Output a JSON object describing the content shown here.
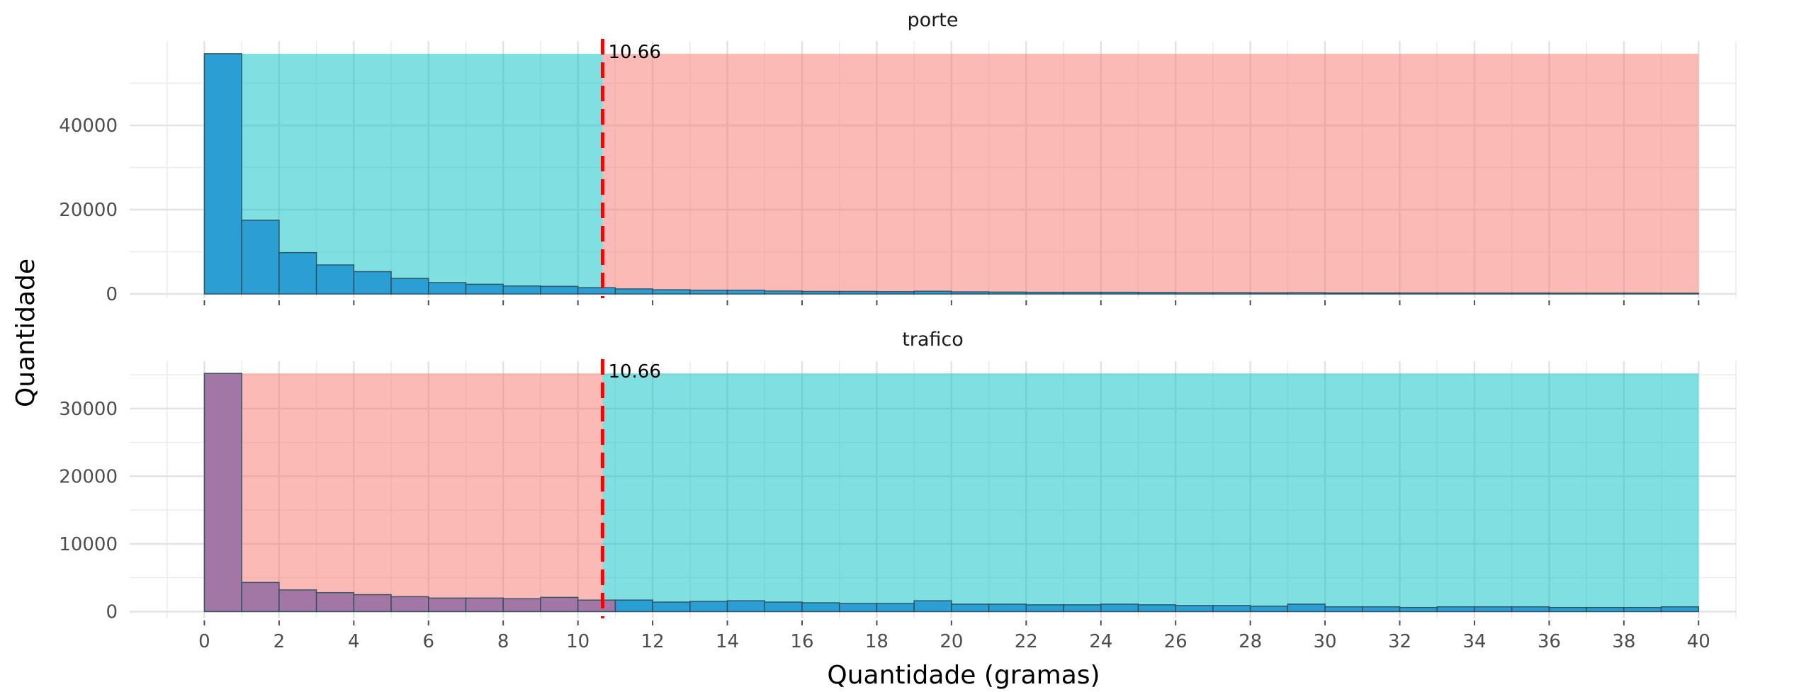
{
  "chart_data": {
    "type": "bar",
    "xlabel": "Quantidade (gramas)",
    "ylabel": "Quantidade",
    "xlim": [
      -2,
      41
    ],
    "x_ticks": [
      0,
      2,
      4,
      6,
      8,
      10,
      12,
      14,
      16,
      18,
      20,
      22,
      24,
      26,
      28,
      30,
      32,
      34,
      36,
      38,
      40
    ],
    "bin_width": 1,
    "cutoff": 10.66,
    "cutoff_label": "10.66",
    "cutoff_color": "#ff0000",
    "colors": {
      "porte_bar": "#2b9fd3",
      "trafico_bar_left": "#a277a6",
      "trafico_bar_right": "#2b9fd3",
      "shade_teal": "#00bfc4",
      "shade_red": "#f8766d"
    },
    "panels": [
      {
        "name": "porte",
        "ylim": [
          -1000,
          60000
        ],
        "y_ticks": [
          0,
          20000,
          40000
        ],
        "y_tick_labels": [
          "0",
          "20000",
          "40000"
        ],
        "shade_top": 57000,
        "shade_left_color": "teal",
        "shade_right_color": "red",
        "bins_start": [
          0,
          1,
          2,
          3,
          4,
          5,
          6,
          7,
          8,
          9,
          10,
          11,
          12,
          13,
          14,
          15,
          16,
          17,
          18,
          19,
          20,
          21,
          22,
          23,
          24,
          25,
          26,
          27,
          28,
          29,
          30,
          31,
          32,
          33,
          34,
          35,
          36,
          37,
          38,
          39
        ],
        "counts": [
          57000,
          17500,
          9800,
          6900,
          5300,
          3700,
          2700,
          2300,
          1900,
          1800,
          1500,
          1200,
          1000,
          900,
          900,
          700,
          600,
          600,
          550,
          650,
          500,
          450,
          400,
          400,
          400,
          350,
          300,
          300,
          280,
          300,
          250,
          250,
          230,
          230,
          220,
          220,
          200,
          200,
          200,
          180
        ]
      },
      {
        "name": "trafico",
        "ylim": [
          -1000,
          37000
        ],
        "y_ticks": [
          0,
          10000,
          20000,
          30000
        ],
        "y_tick_labels": [
          "0",
          "10000",
          "20000",
          "30000"
        ],
        "shade_top": 35200,
        "shade_left_color": "red",
        "shade_right_color": "teal",
        "bins_start": [
          0,
          1,
          2,
          3,
          4,
          5,
          6,
          7,
          8,
          9,
          10,
          11,
          12,
          13,
          14,
          15,
          16,
          17,
          18,
          19,
          20,
          21,
          22,
          23,
          24,
          25,
          26,
          27,
          28,
          29,
          30,
          31,
          32,
          33,
          34,
          35,
          36,
          37,
          38,
          39
        ],
        "counts": [
          35200,
          4300,
          3200,
          2800,
          2500,
          2200,
          2000,
          2000,
          1900,
          2100,
          1700,
          1700,
          1400,
          1500,
          1600,
          1400,
          1300,
          1200,
          1200,
          1600,
          1100,
          1100,
          1000,
          1000,
          1100,
          1000,
          900,
          900,
          800,
          1100,
          700,
          700,
          600,
          700,
          700,
          700,
          600,
          600,
          600,
          700
        ]
      }
    ]
  }
}
